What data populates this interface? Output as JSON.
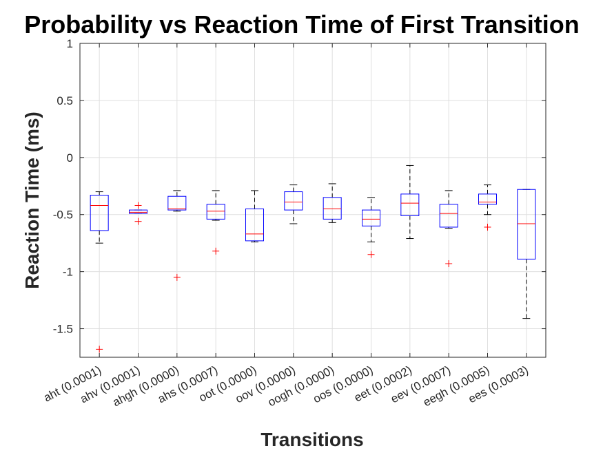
{
  "chart_data": {
    "type": "box",
    "title": "Probability vs Reaction Time  of First Transition",
    "xlabel": "Transitions",
    "ylabel": "Reaction Time (ms)",
    "ylim": [
      -1.75,
      1
    ],
    "yticks": [
      1,
      0.5,
      0,
      -0.5,
      -1,
      -1.5
    ],
    "ytick_labels": [
      "1",
      "0.5",
      "0",
      "-0.5",
      "-1",
      "-1.5"
    ],
    "grid": true,
    "colors": {
      "box": "#0000ff",
      "median": "#ff0000",
      "whisker": "#000000",
      "outlier": "#ff0000"
    },
    "categories": [
      "aht (0.0001)",
      "ahv (0.0001)",
      "ahgh (0.0000)",
      "ahs (0.0007)",
      "oot (0.0000)",
      "oov (0.0000)",
      "oogh (0.0000)",
      "oos (0.0000)",
      "eet (0.0002)",
      "eev (0.0007)",
      "eegh (0.0005)",
      "ees (0.0003)"
    ],
    "boxes": [
      {
        "whisker_low": -0.75,
        "q1": -0.64,
        "median": -0.42,
        "q3": -0.33,
        "whisker_high": -0.3,
        "outliers": [
          -1.68
        ]
      },
      {
        "whisker_low": -0.49,
        "q1": -0.49,
        "median": -0.48,
        "q3": -0.46,
        "whisker_high": -0.46,
        "outliers": [
          -0.42,
          -0.56
        ]
      },
      {
        "whisker_low": -0.47,
        "q1": -0.46,
        "median": -0.45,
        "q3": -0.34,
        "whisker_high": -0.29,
        "outliers": [
          -1.05
        ]
      },
      {
        "whisker_low": -0.55,
        "q1": -0.54,
        "median": -0.47,
        "q3": -0.41,
        "whisker_high": -0.29,
        "outliers": [
          -0.82
        ]
      },
      {
        "whisker_low": -0.74,
        "q1": -0.73,
        "median": -0.67,
        "q3": -0.45,
        "whisker_high": -0.29,
        "outliers": []
      },
      {
        "whisker_low": -0.58,
        "q1": -0.46,
        "median": -0.39,
        "q3": -0.3,
        "whisker_high": -0.24,
        "outliers": []
      },
      {
        "whisker_low": -0.57,
        "q1": -0.54,
        "median": -0.45,
        "q3": -0.35,
        "whisker_high": -0.23,
        "outliers": []
      },
      {
        "whisker_low": -0.74,
        "q1": -0.6,
        "median": -0.54,
        "q3": -0.46,
        "whisker_high": -0.35,
        "outliers": [
          -0.85
        ]
      },
      {
        "whisker_low": -0.71,
        "q1": -0.51,
        "median": -0.4,
        "q3": -0.32,
        "whisker_high": -0.07,
        "outliers": []
      },
      {
        "whisker_low": -0.62,
        "q1": -0.61,
        "median": -0.49,
        "q3": -0.41,
        "whisker_high": -0.29,
        "outliers": [
          -0.93
        ]
      },
      {
        "whisker_low": -0.5,
        "q1": -0.41,
        "median": -0.39,
        "q3": -0.32,
        "whisker_high": -0.24,
        "outliers": [
          -0.61
        ]
      },
      {
        "whisker_low": -1.41,
        "q1": -0.89,
        "median": -0.58,
        "q3": -0.28,
        "whisker_high": -0.28,
        "outliers": []
      }
    ]
  }
}
